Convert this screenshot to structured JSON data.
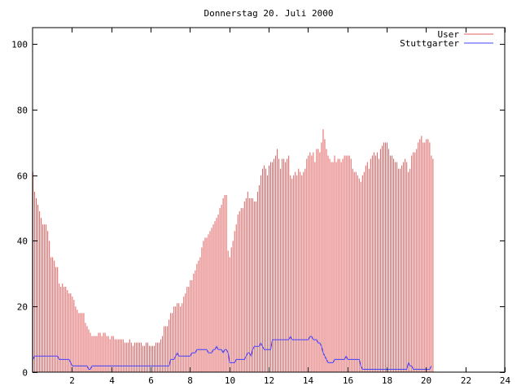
{
  "chart_data": {
    "type": "bar",
    "title": "Donnerstag 20. Juli 2000",
    "xlabel": "",
    "ylabel": "",
    "xlim": [
      0,
      24
    ],
    "ylim": [
      0,
      105
    ],
    "x_ticks": [
      2,
      4,
      6,
      8,
      10,
      12,
      14,
      16,
      18,
      20,
      22,
      24
    ],
    "y_ticks": [
      0,
      20,
      40,
      60,
      80,
      100
    ],
    "legend_position": "top-right",
    "grid": false,
    "samples_per_hour": 12,
    "series": [
      {
        "name": "User",
        "style": "impulses",
        "color": "#e06060",
        "values": [
          61,
          55,
          53,
          51,
          49,
          47,
          45,
          45,
          45,
          43,
          40,
          35,
          35,
          34,
          32,
          32,
          27,
          26,
          27,
          26,
          26,
          25,
          24,
          24,
          23,
          22,
          20,
          19,
          18,
          18,
          18,
          18,
          15,
          14,
          13,
          12,
          11,
          11,
          11,
          11,
          12,
          12,
          11,
          12,
          12,
          11,
          11,
          10,
          11,
          11,
          10,
          10,
          10,
          10,
          10,
          10,
          9,
          9,
          9,
          10,
          9,
          8,
          9,
          9,
          9,
          9,
          9,
          8,
          8,
          9,
          9,
          8,
          8,
          8,
          8,
          9,
          9,
          9,
          10,
          11,
          14,
          14,
          14,
          16,
          18,
          18,
          20,
          20,
          21,
          21,
          20,
          21,
          23,
          24,
          26,
          26,
          28,
          28,
          30,
          31,
          33,
          34,
          35,
          38,
          40,
          41,
          41,
          42,
          43,
          44,
          45,
          46,
          47,
          48,
          50,
          51,
          53,
          54,
          54,
          37,
          35,
          38,
          40,
          43,
          45,
          48,
          49,
          50,
          50,
          52,
          53,
          55,
          53,
          53,
          53,
          52,
          52,
          55,
          57,
          60,
          62,
          63,
          62,
          60,
          63,
          64,
          64,
          65,
          66,
          68,
          65,
          62,
          65,
          65,
          64,
          65,
          66,
          60,
          59,
          60,
          61,
          60,
          62,
          61,
          60,
          61,
          62,
          65,
          66,
          67,
          66,
          67,
          64,
          68,
          68,
          67,
          70,
          74,
          71,
          68,
          66,
          65,
          64,
          64,
          66,
          64,
          65,
          65,
          64,
          65,
          66,
          66,
          66,
          66,
          65,
          62,
          61,
          61,
          60,
          59,
          58,
          60,
          61,
          63,
          64,
          62,
          65,
          66,
          67,
          66,
          67,
          65,
          68,
          69,
          70,
          70,
          70,
          68,
          66,
          66,
          65,
          64,
          64,
          62,
          62,
          63,
          64,
          65,
          64,
          61,
          62,
          66,
          67,
          67,
          68,
          70,
          71,
          72,
          70,
          70,
          71,
          71,
          70,
          66,
          65
        ]
      },
      {
        "name": "Stuttgarter",
        "style": "line",
        "color": "#4040ff",
        "values": [
          4,
          5,
          5,
          5,
          5,
          5,
          5,
          5,
          5,
          5,
          5,
          5,
          5,
          5,
          5,
          5,
          4,
          4,
          4,
          4,
          4,
          4,
          4,
          3,
          2,
          2,
          2,
          2,
          2,
          2,
          2,
          2,
          2,
          2,
          1,
          1,
          2,
          2,
          2,
          2,
          2,
          2,
          2,
          2,
          2,
          2,
          2,
          2,
          2,
          2,
          2,
          2,
          2,
          2,
          2,
          2,
          2,
          2,
          2,
          2,
          2,
          2,
          2,
          2,
          2,
          2,
          2,
          2,
          2,
          2,
          2,
          2,
          2,
          2,
          2,
          2,
          2,
          2,
          2,
          2,
          2,
          2,
          2,
          2,
          4,
          4,
          4,
          5,
          6,
          5,
          5,
          5,
          5,
          5,
          5,
          5,
          5,
          6,
          6,
          6,
          7,
          7,
          7,
          7,
          7,
          7,
          7,
          6,
          6,
          6,
          7,
          7,
          8,
          7,
          7,
          7,
          6,
          7,
          7,
          6,
          3,
          3,
          3,
          3,
          4,
          4,
          4,
          4,
          4,
          4,
          5,
          6,
          6,
          5,
          7,
          8,
          8,
          8,
          8,
          9,
          8,
          7,
          7,
          7,
          7,
          7,
          10,
          10,
          10,
          10,
          10,
          10,
          10,
          10,
          10,
          10,
          10,
          11,
          10,
          10,
          10,
          10,
          10,
          10,
          10,
          10,
          10,
          10,
          10,
          11,
          11,
          10,
          10,
          10,
          9,
          9,
          8,
          6,
          5,
          4,
          3,
          3,
          3,
          3,
          4,
          4,
          4,
          4,
          4,
          4,
          4,
          5,
          4,
          4,
          4,
          4,
          4,
          4,
          4,
          4,
          2,
          1,
          1,
          1,
          1,
          1,
          1,
          1,
          1,
          1,
          1,
          1,
          1,
          1,
          1,
          1,
          1,
          1,
          1,
          1,
          1,
          1,
          1,
          1,
          1,
          1,
          1,
          1,
          1,
          3,
          2,
          2,
          1,
          1,
          1,
          1,
          1,
          1,
          1,
          1,
          1,
          1,
          1,
          2
        ]
      }
    ]
  }
}
